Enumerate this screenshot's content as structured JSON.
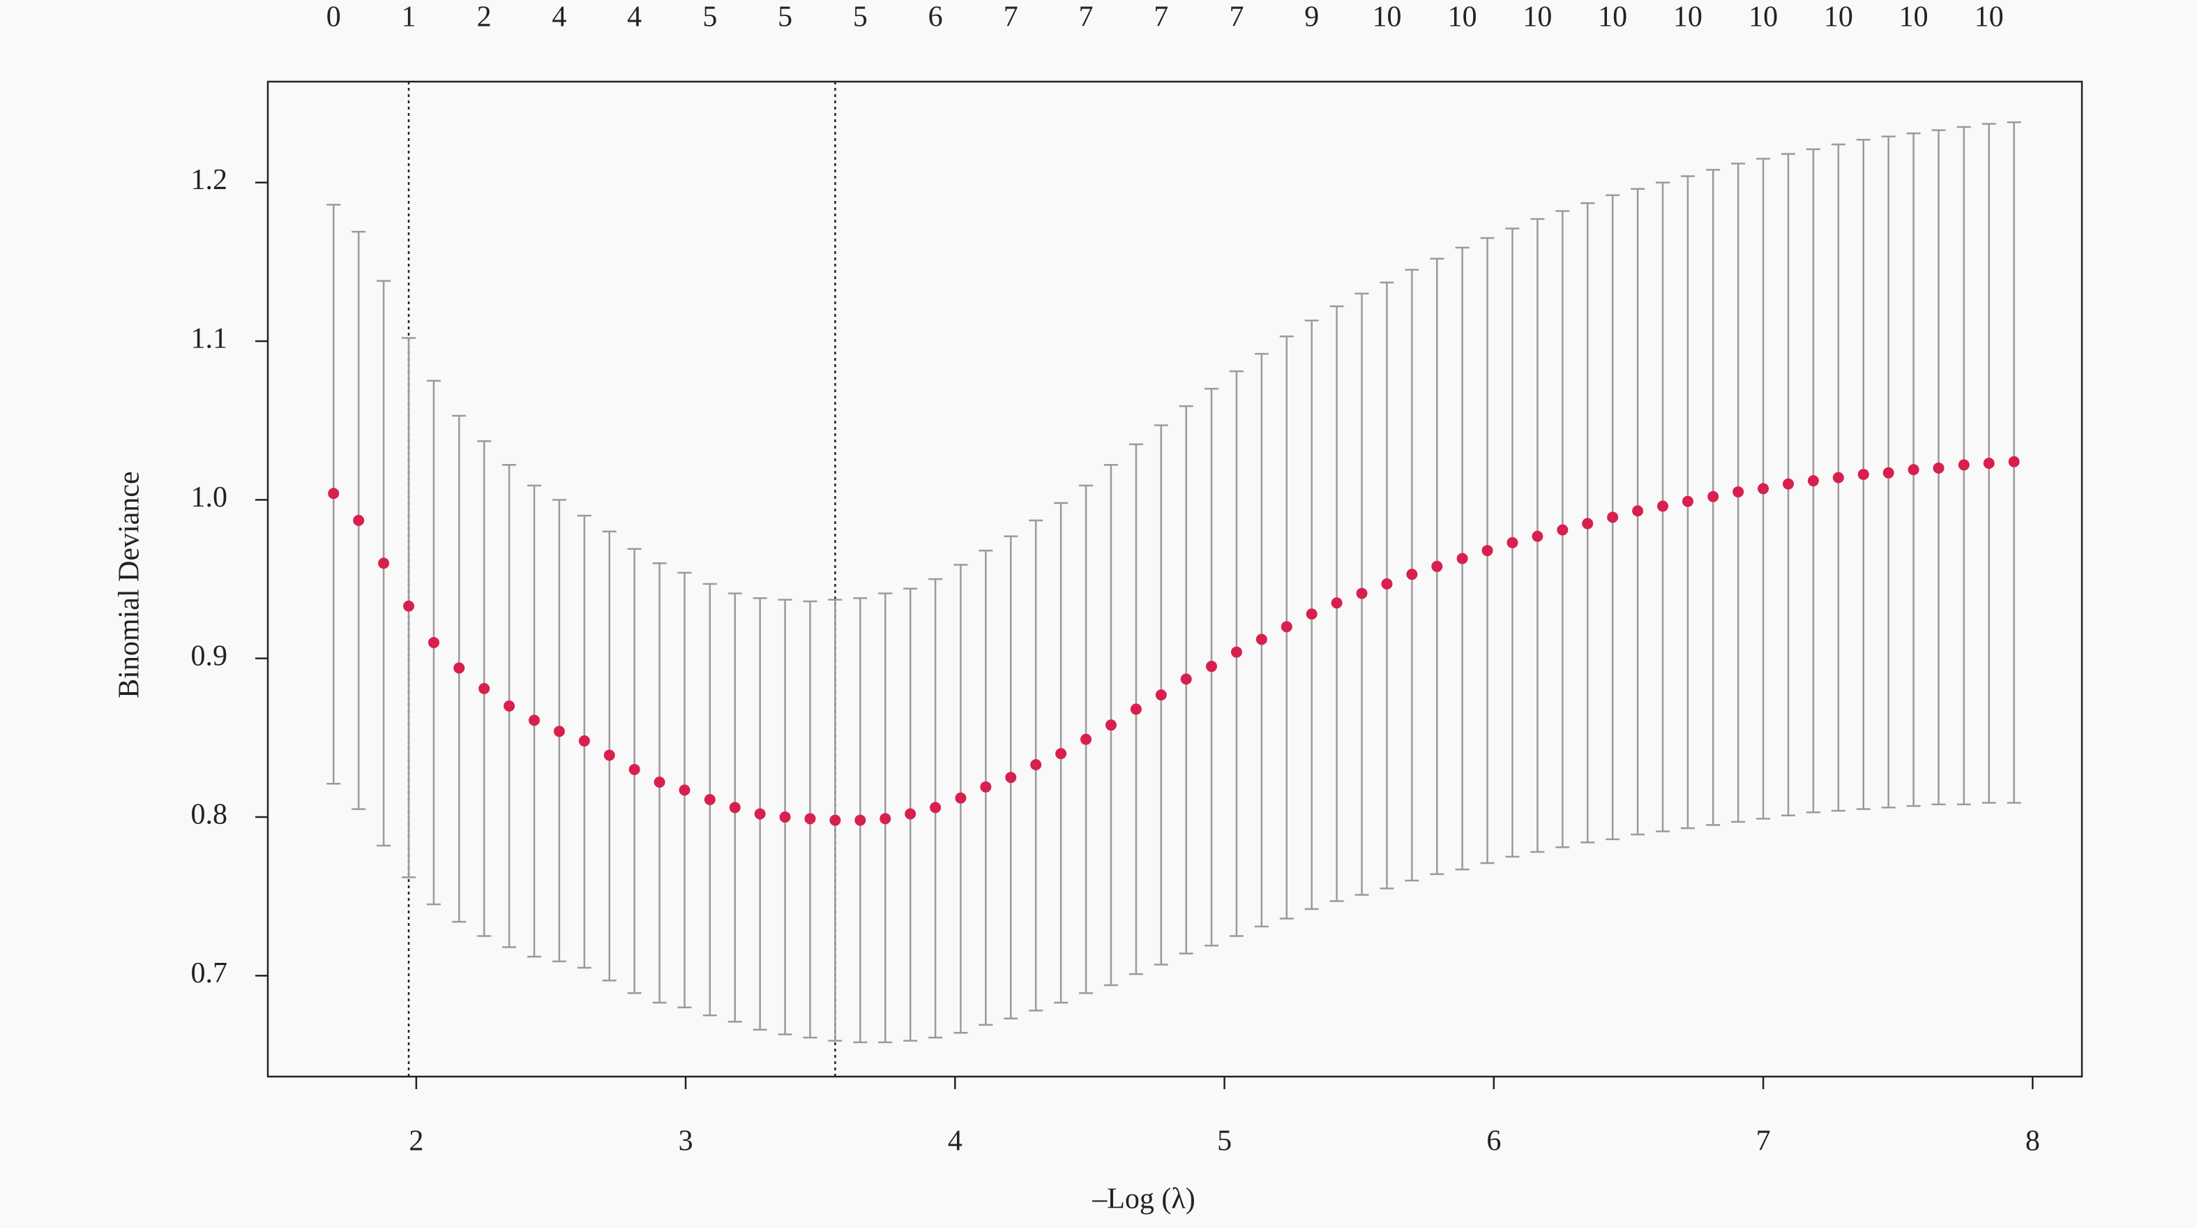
{
  "chart_data": {
    "type": "errorbar",
    "xlabel": "–Log (λ)",
    "ylabel": "Binomial Deviance",
    "xlim": [
      1.449,
      8.183
    ],
    "ylim": [
      0.6364,
      1.2636
    ],
    "xticks": [
      2,
      3,
      4,
      5,
      6,
      7,
      8
    ],
    "yticks": [
      0.7,
      0.8,
      0.9,
      {
        "value": 1.0,
        "label": "1.0"
      },
      1.1,
      1.2
    ],
    "x": [
      1.693,
      1.786,
      1.879,
      1.972,
      2.065,
      2.159,
      2.252,
      2.345,
      2.438,
      2.531,
      2.624,
      2.717,
      2.81,
      2.903,
      2.996,
      3.09,
      3.183,
      3.276,
      3.369,
      3.462,
      3.555,
      3.648,
      3.741,
      3.834,
      3.927,
      4.021,
      4.114,
      4.207,
      4.3,
      4.393,
      4.486,
      4.579,
      4.672,
      4.765,
      4.858,
      4.952,
      5.045,
      5.138,
      5.231,
      5.324,
      5.417,
      5.51,
      5.603,
      5.696,
      5.789,
      5.883,
      5.976,
      6.069,
      6.162,
      6.255,
      6.348,
      6.441,
      6.534,
      6.627,
      6.72,
      6.814,
      6.907,
      7.0,
      7.093,
      7.186,
      7.279,
      7.372,
      7.465,
      7.558,
      7.651,
      7.745,
      7.838,
      7.931
    ],
    "values": [
      1.004,
      0.987,
      0.96,
      0.933,
      0.91,
      0.894,
      0.881,
      0.87,
      0.861,
      0.854,
      0.848,
      0.839,
      0.83,
      0.822,
      0.817,
      0.811,
      0.806,
      0.802,
      0.8,
      0.799,
      0.798,
      0.798,
      0.799,
      0.802,
      0.806,
      0.812,
      0.819,
      0.825,
      0.833,
      0.84,
      0.849,
      0.858,
      0.868,
      0.877,
      0.887,
      0.895,
      0.904,
      0.912,
      0.92,
      0.928,
      0.935,
      0.941,
      0.947,
      0.953,
      0.958,
      0.963,
      0.968,
      0.973,
      0.977,
      0.981,
      0.985,
      0.989,
      0.993,
      0.996,
      0.999,
      1.002,
      1.005,
      1.007,
      1.01,
      1.012,
      1.014,
      1.016,
      1.017,
      1.019,
      1.02,
      1.022,
      1.023,
      1.024
    ],
    "upper": [
      1.186,
      1.169,
      1.138,
      1.102,
      1.075,
      1.053,
      1.037,
      1.022,
      1.009,
      1.0,
      0.99,
      0.98,
      0.969,
      0.96,
      0.954,
      0.947,
      0.941,
      0.938,
      0.937,
      0.936,
      0.937,
      0.938,
      0.941,
      0.944,
      0.95,
      0.959,
      0.968,
      0.977,
      0.987,
      0.998,
      1.009,
      1.022,
      1.035,
      1.047,
      1.059,
      1.07,
      1.081,
      1.092,
      1.103,
      1.113,
      1.122,
      1.13,
      1.137,
      1.145,
      1.152,
      1.159,
      1.165,
      1.171,
      1.177,
      1.182,
      1.187,
      1.192,
      1.196,
      1.2,
      1.204,
      1.208,
      1.212,
      1.215,
      1.218,
      1.221,
      1.224,
      1.227,
      1.229,
      1.231,
      1.233,
      1.235,
      1.237,
      1.238
    ],
    "lower": [
      0.821,
      0.805,
      0.782,
      0.762,
      0.745,
      0.734,
      0.725,
      0.718,
      0.712,
      0.709,
      0.705,
      0.697,
      0.689,
      0.683,
      0.68,
      0.675,
      0.671,
      0.666,
      0.663,
      0.661,
      0.659,
      0.658,
      0.658,
      0.659,
      0.661,
      0.664,
      0.669,
      0.673,
      0.678,
      0.683,
      0.689,
      0.694,
      0.701,
      0.707,
      0.714,
      0.719,
      0.725,
      0.731,
      0.736,
      0.742,
      0.747,
      0.751,
      0.755,
      0.76,
      0.764,
      0.767,
      0.771,
      0.775,
      0.778,
      0.781,
      0.784,
      0.786,
      0.789,
      0.791,
      0.793,
      0.795,
      0.797,
      0.799,
      0.801,
      0.803,
      0.804,
      0.805,
      0.806,
      0.807,
      0.808,
      0.808,
      0.809,
      0.809
    ],
    "nonzero": [
      0,
      null,
      null,
      1,
      null,
      null,
      2,
      null,
      null,
      4,
      null,
      null,
      4,
      null,
      null,
      5,
      null,
      null,
      5,
      null,
      null,
      5,
      null,
      null,
      6,
      null,
      null,
      7,
      null,
      null,
      7,
      null,
      null,
      7,
      null,
      null,
      7,
      null,
      null,
      9,
      null,
      null,
      10,
      null,
      null,
      10,
      null,
      null,
      10,
      null,
      null,
      10,
      null,
      null,
      10,
      null,
      null,
      10,
      null,
      null,
      10,
      null,
      null,
      10,
      null,
      null,
      10,
      null
    ],
    "vlines": [
      1.972,
      3.555
    ],
    "color": "#d8204f",
    "errorbar_color": "#9a9a9a"
  }
}
